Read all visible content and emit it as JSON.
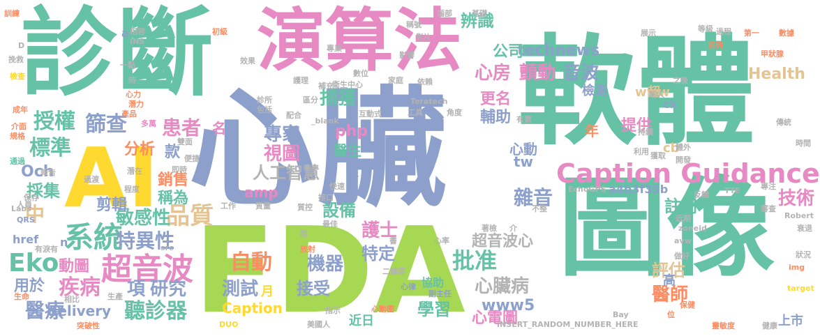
{
  "words": [
    {
      "id": "w-xinzang",
      "text": "心臟"
    },
    {
      "id": "w-ruanti",
      "text": "軟體"
    },
    {
      "id": "w-tuxiang",
      "text": "圖像"
    },
    {
      "id": "w-fda",
      "text": "FDA"
    },
    {
      "id": "w-zhenduan",
      "text": "診斷"
    },
    {
      "id": "w-yansuanfa",
      "text": "演算法"
    },
    {
      "id": "w-ai",
      "text": "AI"
    },
    {
      "id": "w-caption-guidance",
      "text": "Caption Guidance"
    },
    {
      "id": "w-chaoyinbo",
      "text": "超音波"
    },
    {
      "id": "w-xitong",
      "text": "系統"
    },
    {
      "id": "w-pinzhi",
      "text": "品質"
    },
    {
      "id": "w-shoquan",
      "text": "授權"
    },
    {
      "id": "w-biaozhun",
      "text": "標準"
    },
    {
      "id": "w-shaicha",
      "text": "篩查"
    },
    {
      "id": "w-huanzhe",
      "text": "患者"
    },
    {
      "id": "w-eko",
      "text": "Eko"
    },
    {
      "id": "w-zhuanjia",
      "text": "專家"
    },
    {
      "id": "w-shitu",
      "text": "視圖"
    },
    {
      "id": "w-rengongzhihui",
      "text": "人工智慧"
    },
    {
      "id": "w-buhuo",
      "text": "捕獲"
    },
    {
      "id": "w-pizhun",
      "text": "批准"
    },
    {
      "id": "w-zidong",
      "text": "自動"
    },
    {
      "id": "w-jiqi",
      "text": "機器"
    },
    {
      "id": "w-teyixing",
      "text": "特異性"
    },
    {
      "id": "w-minganxing",
      "text": "敏感性"
    },
    {
      "id": "w-jibing",
      "text": "疾病"
    },
    {
      "id": "w-xiang",
      "text": "項"
    },
    {
      "id": "w-yanjiu",
      "text": "研究"
    },
    {
      "id": "w-yiliao",
      "text": "醫療"
    },
    {
      "id": "w-tingzhenqi",
      "text": "聽診器"
    },
    {
      "id": "w-ceshi",
      "text": "測試"
    },
    {
      "id": "w-jieshou",
      "text": "接受"
    },
    {
      "id": "w-xinzangbing",
      "text": "心臟病"
    },
    {
      "id": "w-hushi",
      "text": "護士"
    },
    {
      "id": "w-teding",
      "text": "特定"
    },
    {
      "id": "w-xuexi",
      "text": "學習"
    },
    {
      "id": "w-xindiantu",
      "text": "心電圖"
    },
    {
      "id": "w-yishi",
      "text": "醫師"
    },
    {
      "id": "w-pinggu",
      "text": "評估"
    },
    {
      "id": "w-zhuce",
      "text": "註冊"
    },
    {
      "id": "w-jishu",
      "text": "技術"
    },
    {
      "id": "w-zayin",
      "text": "雜音"
    },
    {
      "id": "w-xinfang",
      "text": "心房"
    },
    {
      "id": "w-chandong",
      "text": "顫動"
    },
    {
      "id": "w-yinbo",
      "text": "音波"
    },
    {
      "id": "w-health",
      "text": "Health"
    },
    {
      "id": "w-technews",
      "text": "technews"
    },
    {
      "id": "w-bianshi",
      "text": "辨識"
    },
    {
      "id": "w-gongsi",
      "text": "公司"
    },
    {
      "id": "w-jiance",
      "text": "檢測"
    },
    {
      "id": "w-www",
      "text": "www"
    },
    {
      "id": "w-gengming",
      "text": "更名"
    },
    {
      "id": "w-fuzhu",
      "text": "輔助"
    },
    {
      "id": "w-tigong",
      "text": "提供"
    },
    {
      "id": "w-caiji",
      "text": "採集"
    },
    {
      "id": "w-och",
      "text": "Och"
    },
    {
      "id": "w-fenxi",
      "text": "分析"
    },
    {
      "id": "w-kuan",
      "text": "款"
    },
    {
      "id": "w-xiaoshou",
      "text": "銷售"
    },
    {
      "id": "w-chengwei",
      "text": "稱為"
    },
    {
      "id": "w-jianji",
      "text": "剪輯"
    },
    {
      "id": "w-zhong",
      "text": "中"
    },
    {
      "id": "w-amp",
      "text": "amp"
    },
    {
      "id": "w-shebei",
      "text": "設備"
    },
    {
      "id": "w-php",
      "text": "php"
    },
    {
      "id": "w-yisheng",
      "text": "醫生"
    },
    {
      "id": "w-xindong",
      "text": "心動"
    },
    {
      "id": "w-tw",
      "text": "tw"
    },
    {
      "id": "w-donghua",
      "text": "動圖"
    },
    {
      "id": "w-yongyu",
      "text": "用於"
    },
    {
      "id": "w-delivery",
      "text": "delivery"
    },
    {
      "id": "w-caption",
      "text": "Caption"
    },
    {
      "id": "w-www5",
      "text": "www5"
    },
    {
      "id": "w-chaoyinboxin",
      "text": "超音波心"
    },
    {
      "id": "w-a4b3f35b",
      "text": "a4b3f35b"
    },
    {
      "id": "w-cb",
      "text": "cb"
    },
    {
      "id": "w-ck",
      "text": "ck"
    },
    {
      "id": "w-nian",
      "text": "年"
    },
    {
      "id": "w-huo",
      "text": "獲"
    },
    {
      "id": "w-yue",
      "text": "月"
    },
    {
      "id": "w-gao",
      "text": "高"
    },
    {
      "id": "w-shangshi",
      "text": "上市"
    },
    {
      "id": "w-jinri",
      "text": "近日"
    },
    {
      "id": "w-xiezhu",
      "text": "協助"
    },
    {
      "id": "w-ming",
      "text": "名"
    },
    {
      "id": "w-chao",
      "text": "超"
    },
    {
      "id": "w-href",
      "text": "href"
    },
    {
      "id": "w-n",
      "text": "n"
    },
    {
      "id": "w-a",
      "text": "a"
    },
    {
      "id": "w-xunlian",
      "text": "訓練"
    },
    {
      "id": "w-jiuyi",
      "text": "挽救"
    },
    {
      "id": "w-jiancha",
      "text": "檢查"
    },
    {
      "id": "w-chengnian",
      "text": "成年"
    },
    {
      "id": "w-jiemian",
      "text": "介面"
    },
    {
      "id": "w-guige",
      "text": "規格"
    },
    {
      "id": "w-tongguo",
      "text": "通過"
    },
    {
      "id": "w-baogao",
      "text": "報告"
    },
    {
      "id": "w-labs",
      "text": "Labs"
    },
    {
      "id": "w-qrs",
      "text": "QRS"
    },
    {
      "id": "w-youjiazhi",
      "text": "有淚有"
    },
    {
      "id": "w-shengming",
      "text": "生命"
    },
    {
      "id": "w-tupoxing",
      "text": "突破性"
    },
    {
      "id": "w-xiangbi",
      "text": "相比"
    },
    {
      "id": "w-shengchan",
      "text": "生產"
    },
    {
      "id": "w-meiguoren",
      "text": "美國人"
    },
    {
      "id": "w-duo",
      "text": "DUO"
    },
    {
      "id": "w-zhishi",
      "text": "指示"
    },
    {
      "id": "w-xindongtu",
      "text": "心動圖"
    },
    {
      "id": "w-erweijing",
      "text": "二維經"
    },
    {
      "id": "w-fangshe",
      "text": "放射"
    },
    {
      "id": "w-fuzhuren",
      "text": "副主任"
    },
    {
      "id": "w-xinlv",
      "text": "心律"
    },
    {
      "id": "w-insert",
      "text": "INSERT_RANDOM_NUMBER_HERE"
    },
    {
      "id": "w-bay",
      "text": "Bay"
    },
    {
      "id": "w-baojian",
      "text": "保健"
    },
    {
      "id": "w-wei",
      "text": "位"
    },
    {
      "id": "w-lingmindu",
      "text": "靈敏度"
    },
    {
      "id": "w-jiankang",
      "text": "健康"
    },
    {
      "id": "w-target",
      "text": "target"
    },
    {
      "id": "w-img",
      "text": "img"
    },
    {
      "id": "w-zhuangkuang",
      "text": "狀況"
    },
    {
      "id": "w-shuaitui",
      "text": "衰退"
    },
    {
      "id": "w-robert",
      "text": "Robert"
    },
    {
      "id": "w-shijian",
      "text": "時間"
    },
    {
      "id": "w-chuantong",
      "text": "傳統"
    },
    {
      "id": "w-jiazhuangxian",
      "text": "甲狀腺"
    },
    {
      "id": "w-shuju",
      "text": "數據"
    },
    {
      "id": "w-diyi",
      "text": "第一"
    },
    {
      "id": "w-dengji",
      "text": "等級"
    },
    {
      "id": "w-guocheng",
      "text": "過程"
    },
    {
      "id": "w-zhanshi",
      "text": "展示"
    },
    {
      "id": "w-xilie",
      "text": "系列"
    },
    {
      "id": "w-teratech",
      "text": "Teratech"
    },
    {
      "id": "w-jichu",
      "text": "基礎"
    },
    {
      "id": "w-naoxian",
      "text": "腦部"
    },
    {
      "id": "w-chengzhen",
      "text": "稱號"
    },
    {
      "id": "w-yingpian",
      "text": "影片"
    },
    {
      "id": "w-yingxiang",
      "text": "影響"
    },
    {
      "id": "w-zhuanye",
      "text": "專業"
    },
    {
      "id": "w-chuji",
      "text": "初級"
    },
    {
      "id": "w-xiangrong",
      "text": "相容"
    },
    {
      "id": "w-ins",
      "text": "INS"
    },
    {
      "id": "w-yidian",
      "text": "一點"
    },
    {
      "id": "w-xiaoguo",
      "text": "效果"
    },
    {
      "id": "w-shi",
      "text": "時"
    },
    {
      "id": "w-xinli",
      "text": "心力"
    },
    {
      "id": "w-qianli",
      "text": "潛力"
    },
    {
      "id": "w-chanpin",
      "text": "產品"
    },
    {
      "id": "w-duowan",
      "text": "多萬"
    },
    {
      "id": "w-shuangmian",
      "text": "雙面"
    },
    {
      "id": "w-bianjie",
      "text": "便捷"
    },
    {
      "id": "w-qianzai",
      "text": "潛在"
    },
    {
      "id": "w-jishi",
      "text": "即時"
    },
    {
      "id": "w-chengdu",
      "text": "程度"
    },
    {
      "id": "w-guodu",
      "text": "過渡"
    },
    {
      "id": "w-baocun",
      "text": "保存"
    },
    {
      "id": "w-renyuan",
      "text": "人員"
    },
    {
      "id": "w-src",
      "text": "src"
    },
    {
      "id": "w-zhensuo",
      "text": "診所"
    },
    {
      "id": "w-baokuo",
      "text": "包括"
    },
    {
      "id": "w-peihe",
      "text": "配合"
    },
    {
      "id": "w-qufen",
      "text": "區分"
    },
    {
      "id": "w-blank",
      "text": "_blank"
    },
    {
      "id": "w-hudongshi",
      "text": "互動式"
    },
    {
      "id": "w-gongju",
      "text": "工具"
    },
    {
      "id": "w-jiaodu",
      "text": "角度"
    },
    {
      "id": "w-yousu",
      "text": "有素"
    },
    {
      "id": "w-bingren",
      "text": "病人"
    },
    {
      "id": "w-zhihou",
      "text": "之後"
    },
    {
      "id": "w-chixu",
      "text": "持續"
    },
    {
      "id": "w-tiwai",
      "text": "體外"
    },
    {
      "id": "w-liyong",
      "text": "利用"
    },
    {
      "id": "w-huoqu",
      "text": "獲取"
    },
    {
      "id": "w-kaifa",
      "text": "開發"
    },
    {
      "id": "w-echogps",
      "text": "EchoGPS"
    },
    {
      "id": "w-tte",
      "text": "TTE"
    },
    {
      "id": "w-fankui",
      "text": "反饋"
    },
    {
      "id": "w-zhuanzhu",
      "text": "專注"
    },
    {
      "id": "w-shencha",
      "text": "審查"
    },
    {
      "id": "w-zoneid",
      "text": "zoneid"
    },
    {
      "id": "w-jinqi",
      "text": "近期"
    },
    {
      "id": "w-avw",
      "text": "avw"
    },
    {
      "id": "w-zuohao",
      "text": "做好"
    },
    {
      "id": "w-shu",
      "text": "書"
    },
    {
      "id": "w-jie",
      "text": "介"
    },
    {
      "id": "w-zhuxiang",
      "text": "著檢"
    },
    {
      "id": "w-gongzuo",
      "text": "工作"
    },
    {
      "id": "w-zhiliang",
      "text": "質量"
    },
    {
      "id": "w-zhikong",
      "text": "質控"
    },
    {
      "id": "w-jiekou",
      "text": "接口"
    },
    {
      "id": "w-kuaisu",
      "text": "快速"
    },
    {
      "id": "w-zuijia",
      "text": "最佳"
    },
    {
      "id": "w-shuo",
      "text": "說"
    },
    {
      "id": "w-xinlvx",
      "text": "心率"
    },
    {
      "id": "w-hulix",
      "text": "護理"
    },
    {
      "id": "w-weishengzhongxin",
      "text": "衛生中心"
    },
    {
      "id": "w-buchong",
      "text": "補充"
    },
    {
      "id": "w-shuwei",
      "text": "數位"
    },
    {
      "id": "w-jiating",
      "text": "家庭"
    },
    {
      "id": "w-yilai",
      "text": "依賴"
    },
    {
      "id": "w-buxian",
      "text": "不整"
    },
    {
      "id": "w-d",
      "text": "D"
    }
  ]
}
